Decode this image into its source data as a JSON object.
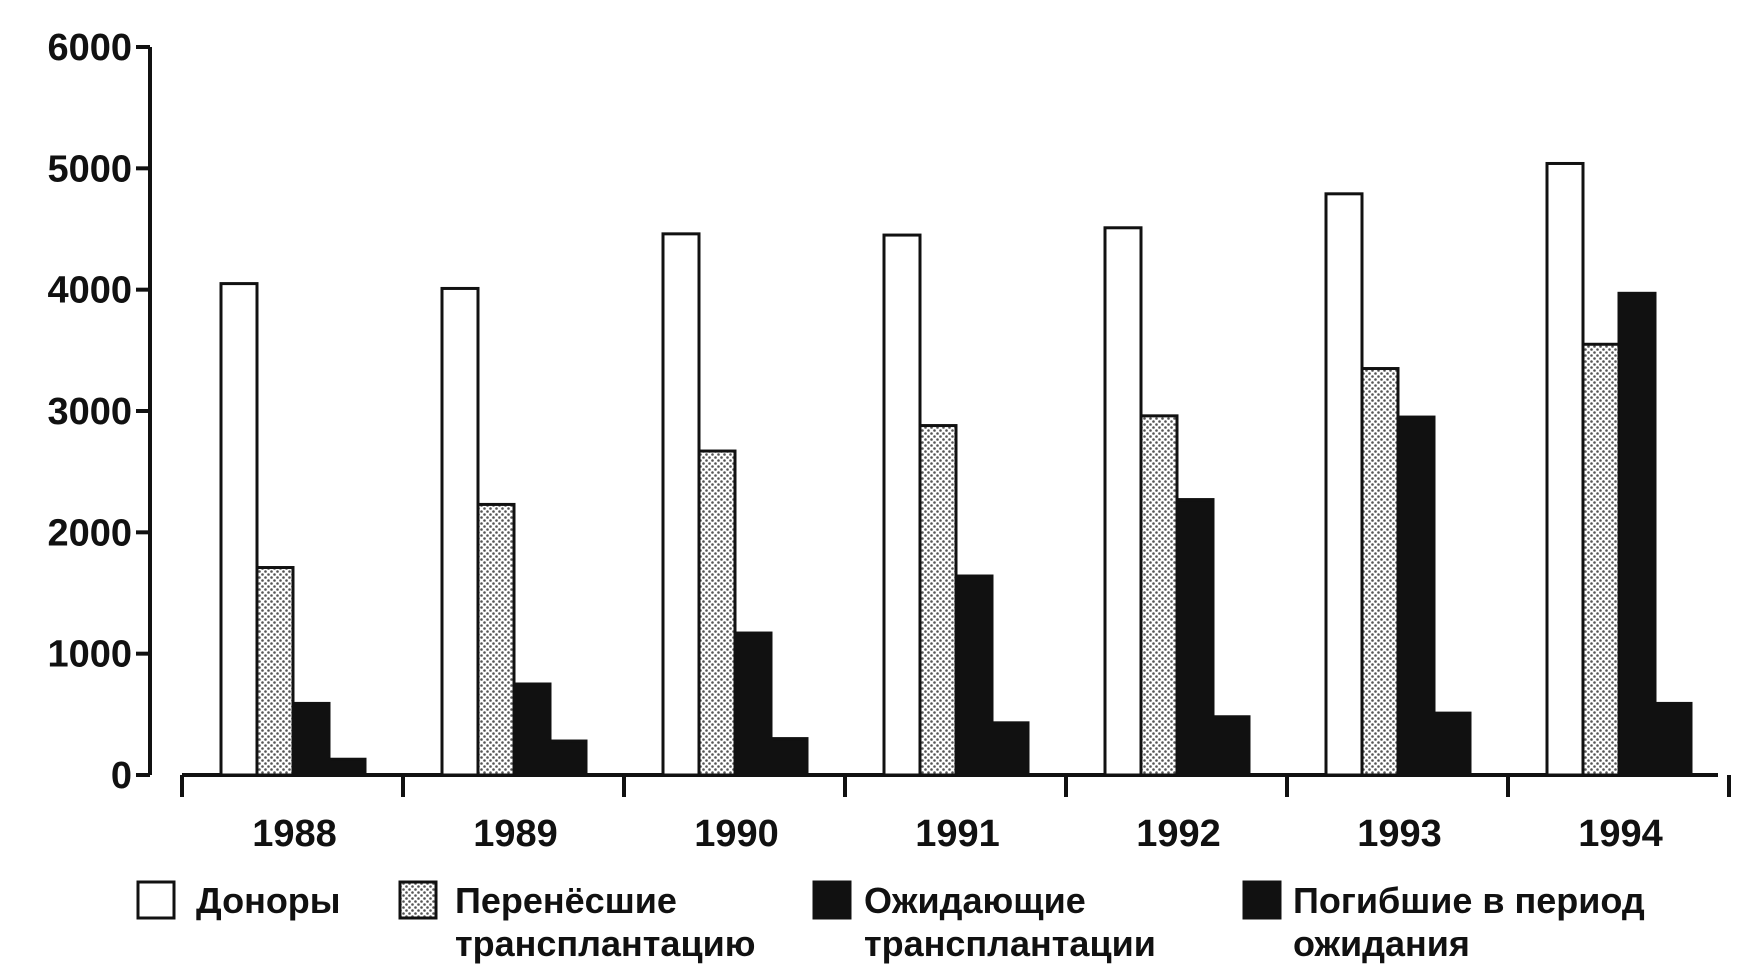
{
  "chart_data": {
    "type": "bar",
    "title": "",
    "xlabel": "",
    "ylabel": "",
    "ylim": [
      0,
      6000
    ],
    "yticks": [
      0,
      1000,
      2000,
      3000,
      4000,
      5000,
      6000
    ],
    "categories": [
      "1988",
      "1989",
      "1990",
      "1991",
      "1992",
      "1993",
      "1994"
    ],
    "series": [
      {
        "name": "Доноры",
        "fill": "white",
        "values": [
          4050,
          4010,
          4460,
          4450,
          4510,
          4790,
          5040
        ]
      },
      {
        "name": "Перенёсшие трансплантацию",
        "fill": "dotted",
        "values": [
          1710,
          2230,
          2670,
          2880,
          2960,
          3350,
          3550
        ]
      },
      {
        "name": "Ожидающие трансплантации",
        "fill": "black",
        "values": [
          590,
          750,
          1170,
          1640,
          2270,
          2950,
          3970
        ]
      },
      {
        "name": "Погибшие в период ожидания",
        "fill": "black",
        "values": [
          130,
          280,
          300,
          430,
          480,
          510,
          590
        ]
      }
    ],
    "legend_position": "bottom",
    "grid": false
  },
  "legend": [
    {
      "lines": [
        "Доноры"
      ]
    },
    {
      "lines": [
        "Перенёсшие",
        "трансплантацию"
      ]
    },
    {
      "lines": [
        "Ожидающие",
        "трансплантации"
      ]
    },
    {
      "lines": [
        "Погибшие в период",
        "ожидания"
      ]
    }
  ],
  "colors": {
    "ink": "#111111",
    "paper": "#ffffff",
    "dots": "#555555"
  }
}
